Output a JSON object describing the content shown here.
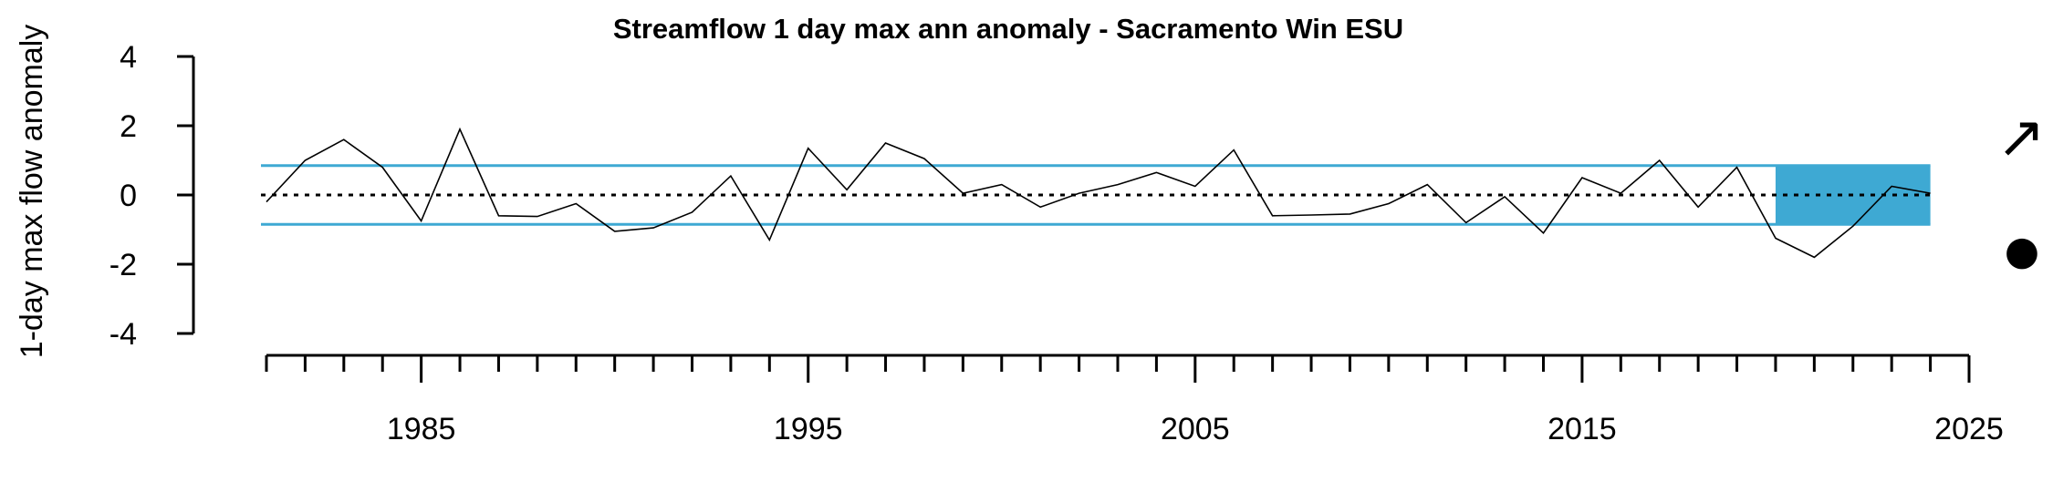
{
  "chart_data": {
    "type": "line",
    "title": "Streamflow 1 day max ann anomaly - Sacramento Win ESU",
    "ylabel": "1-day max flow anomaly",
    "xlabel": "",
    "xlim": [
      1981,
      2025
    ],
    "ylim": [
      -4,
      4
    ],
    "y_ticks": [
      4,
      2,
      0,
      -2,
      -4
    ],
    "y_tick_labels": [
      "4",
      "2",
      "0",
      "-2",
      "-4"
    ],
    "x_major_ticks": [
      1985,
      1995,
      2005,
      2015,
      2025
    ],
    "x_tick_labels": [
      "1985",
      "1995",
      "2005",
      "2015",
      "2025"
    ],
    "x_minor_tick_start": 1981,
    "x_minor_tick_end": 2025,
    "mean": 0,
    "sd_band": [
      -0.85,
      0.85
    ],
    "recent_window": [
      2020,
      2024
    ],
    "series": [
      {
        "x": [
          1981,
          1982,
          1983,
          1984,
          1985,
          1986,
          1987,
          1988,
          1989,
          1990,
          1991,
          1992,
          1993,
          1994,
          1995,
          1996,
          1997,
          1998,
          1999,
          2000,
          2001,
          2002,
          2003,
          2004,
          2005,
          2006,
          2007,
          2008,
          2009,
          2010,
          2011,
          2012,
          2013,
          2014,
          2015,
          2016,
          2017,
          2018,
          2019,
          2020,
          2021,
          2022,
          2023,
          2024
        ],
        "y": [
          -0.2,
          1.0,
          1.6,
          0.8,
          -0.75,
          1.9,
          -0.6,
          -0.62,
          -0.25,
          -1.05,
          -0.95,
          -0.5,
          0.55,
          -1.3,
          1.35,
          0.15,
          1.5,
          1.05,
          0.05,
          0.3,
          -0.35,
          0.05,
          0.3,
          0.65,
          0.25,
          1.3,
          -0.6,
          -0.58,
          -0.55,
          -0.25,
          0.3,
          -0.8,
          -0.05,
          -1.1,
          0.5,
          0.05,
          1.0,
          -0.35,
          0.8,
          -1.25,
          -1.8,
          -0.9,
          0.25,
          0.05
        ]
      }
    ],
    "trend_symbol": "↗",
    "mean_symbol": "●",
    "colors": {
      "band": "#3ea9d3",
      "line": "#000000",
      "mean_line": "#000000"
    }
  }
}
